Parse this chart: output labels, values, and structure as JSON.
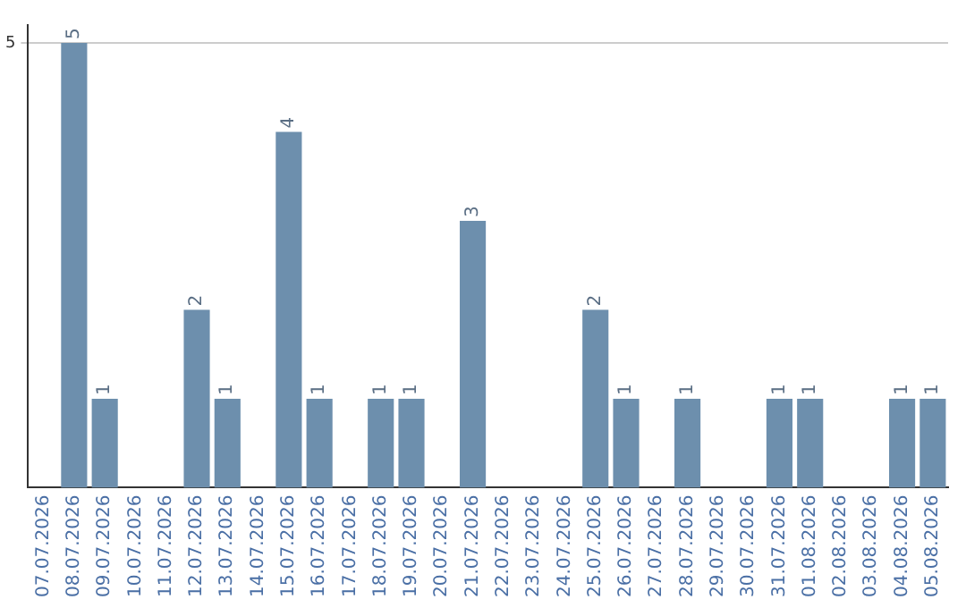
{
  "chart_data": {
    "type": "bar",
    "categories": [
      "07.07.2026",
      "08.07.2026",
      "09.07.2026",
      "10.07.2026",
      "11.07.2026",
      "12.07.2026",
      "13.07.2026",
      "14.07.2026",
      "15.07.2026",
      "16.07.2026",
      "17.07.2026",
      "18.07.2026",
      "19.07.2026",
      "20.07.2026",
      "21.07.2026",
      "22.07.2026",
      "23.07.2026",
      "24.07.2026",
      "25.07.2026",
      "26.07.2026",
      "27.07.2026",
      "28.07.2026",
      "29.07.2026",
      "30.07.2026",
      "31.07.2026",
      "01.08.2026",
      "02.08.2026",
      "03.08.2026",
      "04.08.2026",
      "05.08.2026"
    ],
    "values": [
      0,
      5,
      1,
      0,
      0,
      2,
      1,
      0,
      4,
      1,
      0,
      1,
      1,
      0,
      3,
      0,
      0,
      0,
      2,
      1,
      0,
      1,
      0,
      0,
      1,
      1,
      0,
      0,
      1,
      1
    ],
    "value_labels": [
      null,
      "5",
      "1",
      null,
      null,
      "2",
      "1",
      null,
      "4",
      "1",
      null,
      "1",
      "1",
      null,
      "3",
      null,
      null,
      null,
      "2",
      "1",
      null,
      "1",
      null,
      null,
      "1",
      "1",
      null,
      null,
      "1",
      "1"
    ],
    "color": "#6d8fad",
    "ylim": [
      0,
      5.2
    ],
    "yticks": [
      5
    ],
    "grid": "y",
    "legend": false
  }
}
